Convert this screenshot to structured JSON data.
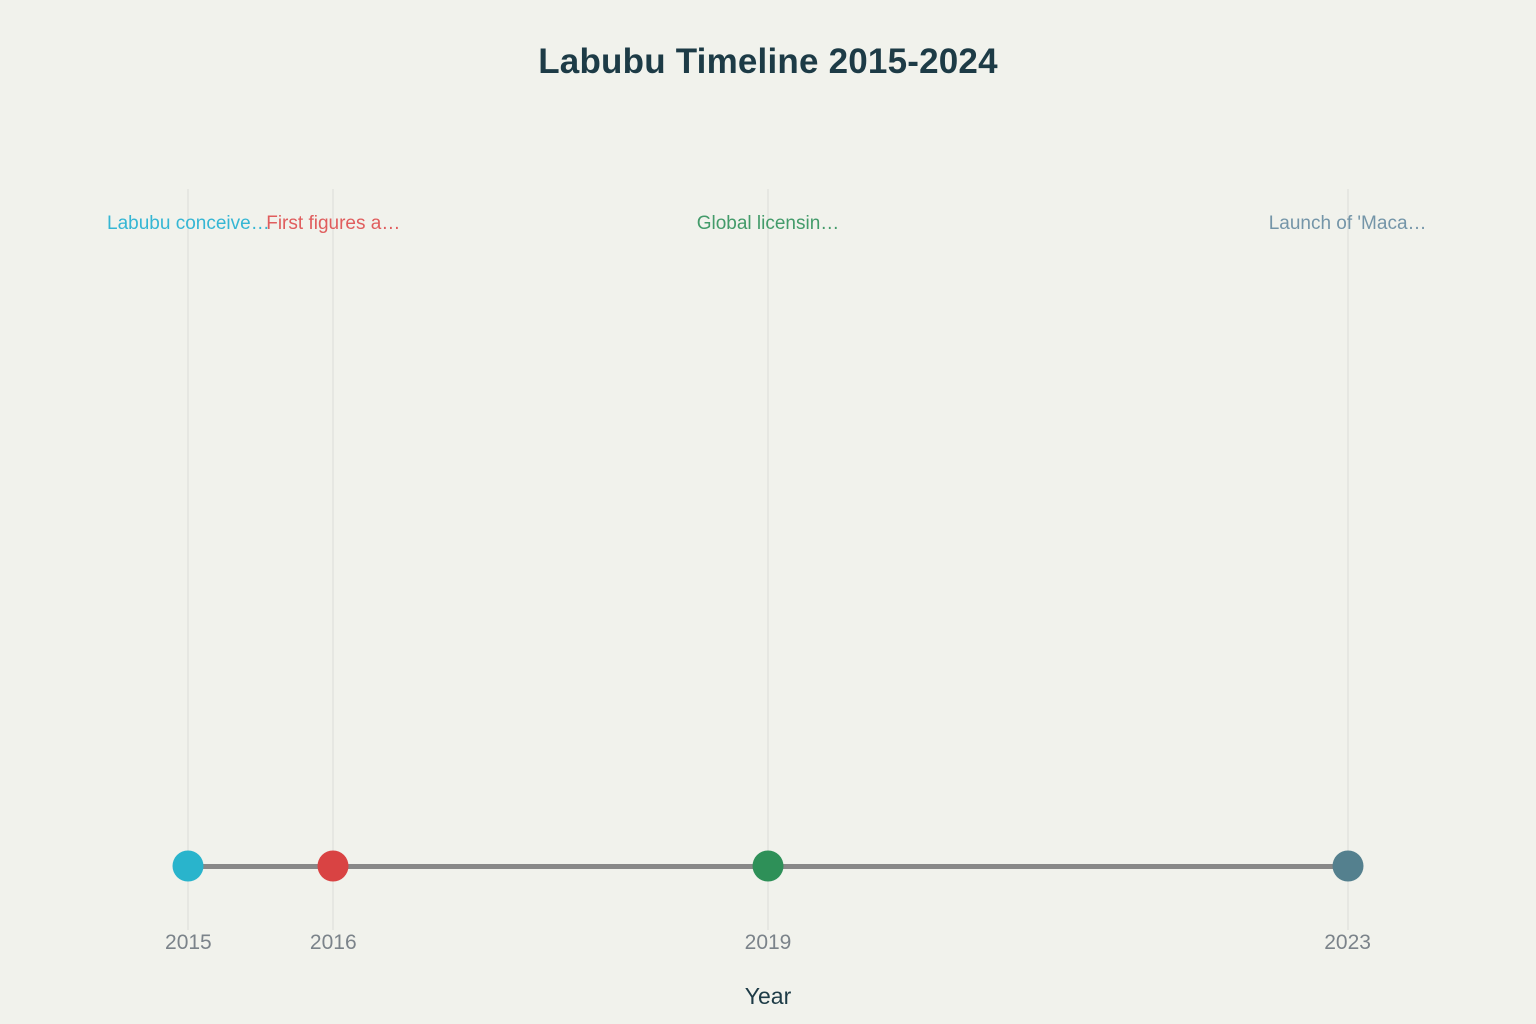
{
  "chart_data": {
    "type": "scatter",
    "subtype": "timeline",
    "title": "Labubu Timeline 2015-2024",
    "xlabel": "Year",
    "xlim": [
      2013.7,
      2024.3
    ],
    "x_tick_labels": [
      "2015",
      "2016",
      "2019",
      "2023"
    ],
    "legend": "none",
    "grid": "vertical-lines-at-event-years-only",
    "events": [
      {
        "year": 2015,
        "tick": "2015",
        "label": "Labubu conceive…",
        "label_color": "#35b6d4",
        "dot_color": "#29b4cc"
      },
      {
        "year": 2016,
        "tick": "2016",
        "label": "First figures a…",
        "label_color": "#e05d5d",
        "dot_color": "#d94343"
      },
      {
        "year": 2019,
        "tick": "2019",
        "label": "Global licensin…",
        "label_color": "#439b6a",
        "dot_color": "#2e9058"
      },
      {
        "year": 2023,
        "tick": "2023",
        "label": "Launch of 'Maca…",
        "label_color": "#7495a8",
        "dot_color": "#54808e"
      }
    ],
    "colors": {
      "background": "#f1f2ec",
      "title_text": "#1d3b46",
      "axis_label_text": "#1d3b46",
      "tick_label_text": "#7b838a",
      "timeline_line": "#888888",
      "gridline": "#dcdcd8"
    }
  }
}
